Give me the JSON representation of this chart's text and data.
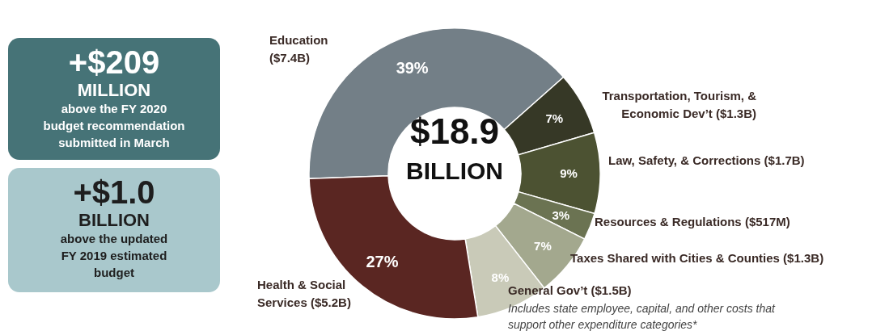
{
  "chart_data": {
    "type": "donut",
    "categories": [
      "Education ($7.4B)",
      "Transportation, Tourism, & Economic Dev’t ($1.3B)",
      "Law, Safety, & Corrections ($1.7B)",
      "Resources & Regulations ($517M)",
      "Taxes Shared with Cities & Counties ($1.3B)",
      "General Gov’t ($1.5B)",
      "Health & Social Services ($5.2B)"
    ],
    "values": [
      39,
      7,
      9,
      3,
      7,
      8,
      27
    ],
    "colors": [
      "#737f87",
      "#363826",
      "#4c5232",
      "#6b7352",
      "#a3a88e",
      "#c9cab8",
      "#5a2622"
    ],
    "value_labels": [
      "39%",
      "7%",
      "9%",
      "3%",
      "7%",
      "8%",
      "27%"
    ],
    "annotations": [
      "$18.9 BILLION",
      "+$209 MILLION above the FY 2020 budget recommendation submitted in March",
      "+$1.0 BILLION above the updated FY 2019 estimated budget",
      "Includes state employee, capital, and other costs that support other expenditure categories*"
    ]
  }
}
